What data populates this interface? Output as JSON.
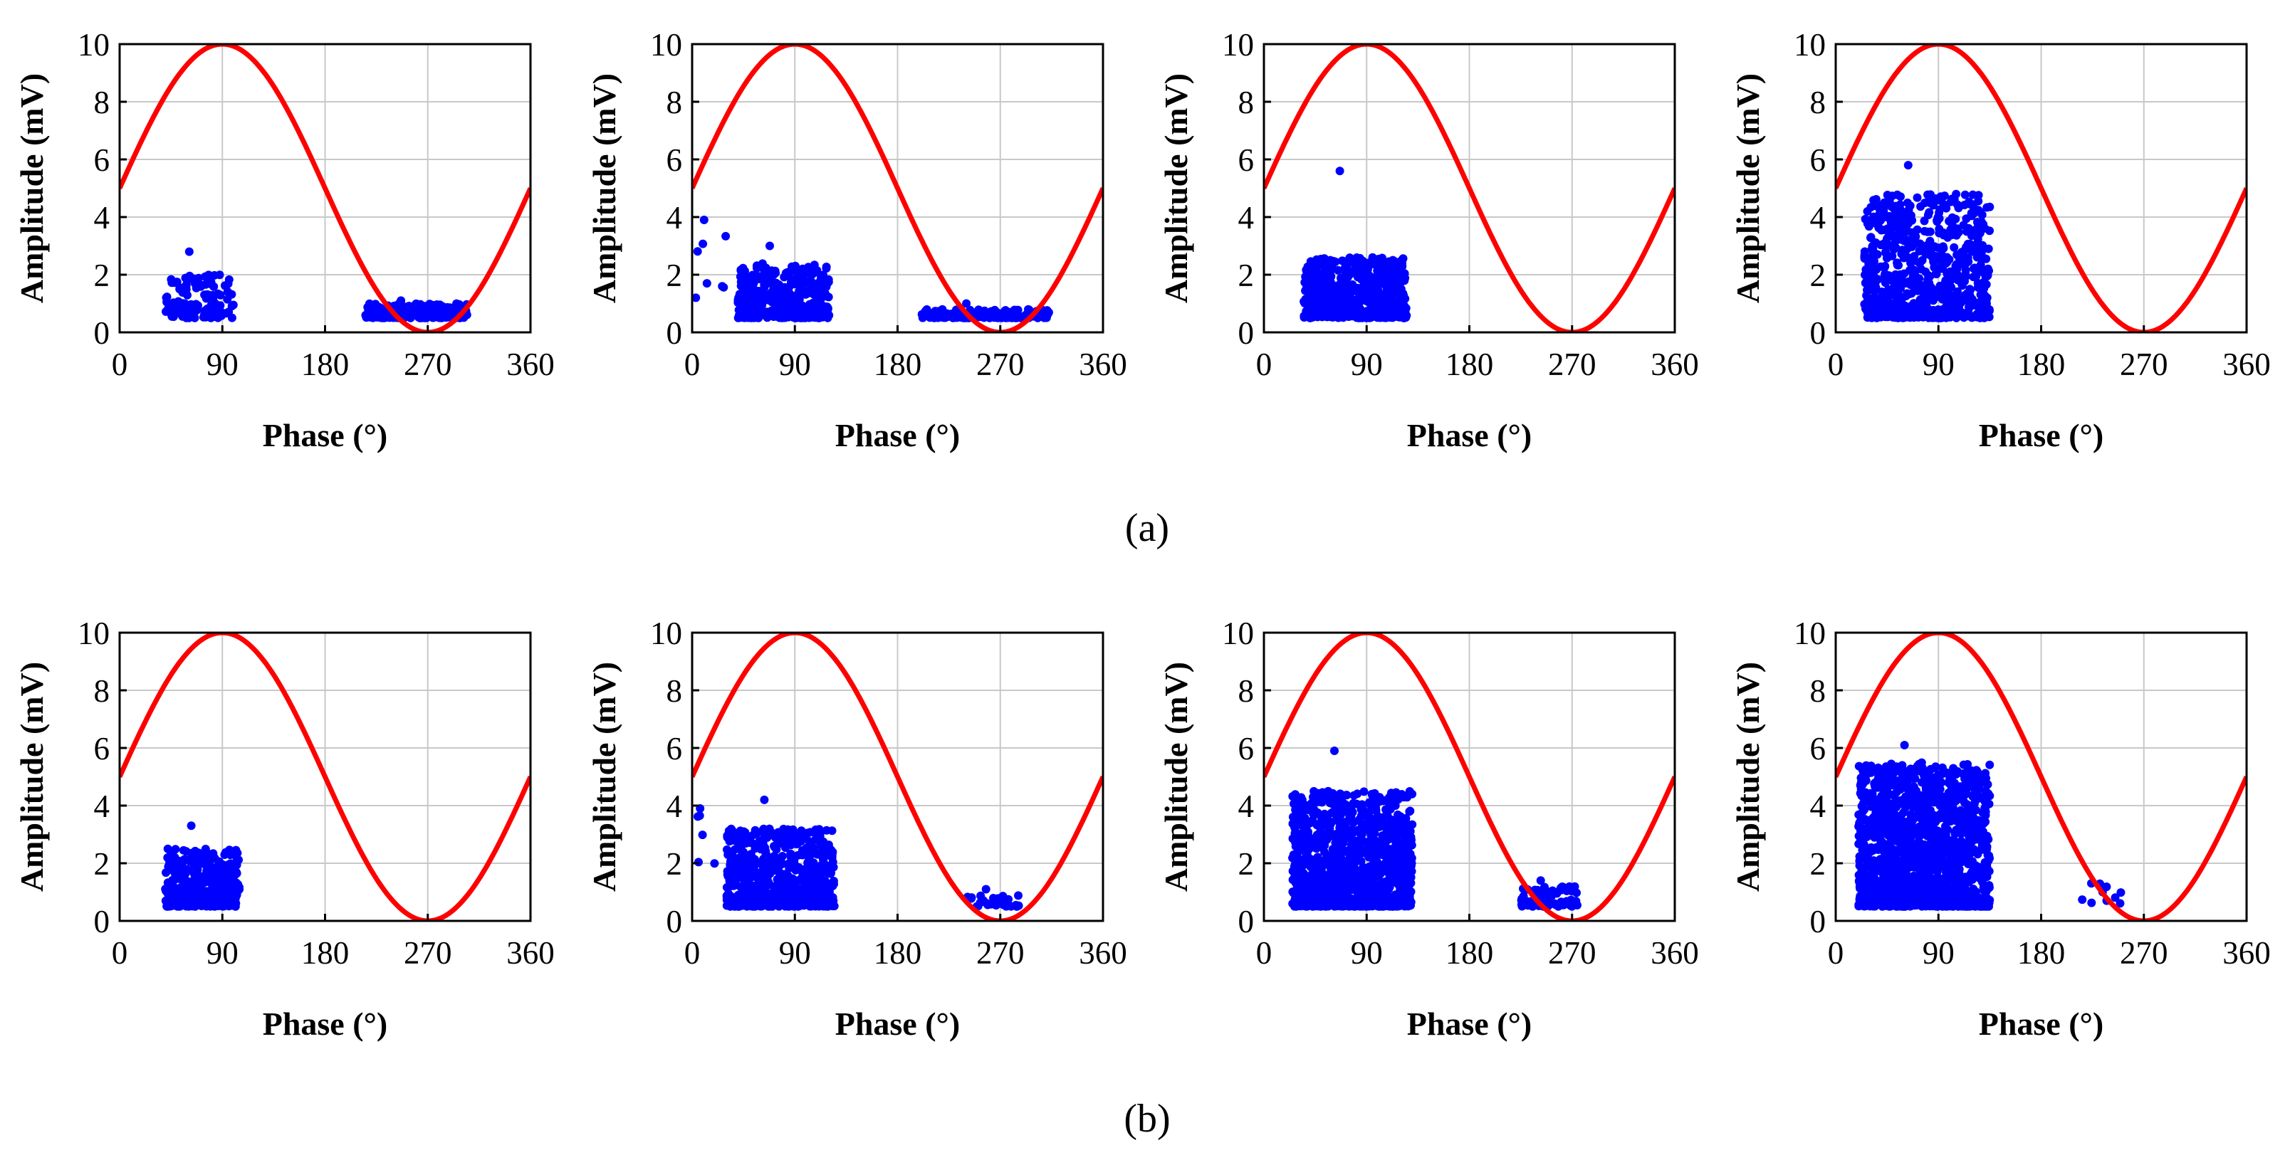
{
  "figure": {
    "row_captions": [
      "(a)",
      "(b)"
    ],
    "colors": {
      "sine": "#ff0000",
      "points": "#0000ff",
      "grid": "#c8c8c8",
      "axis": "#000000"
    }
  },
  "chart_data": [
    {
      "type": "scatter",
      "row": "a",
      "panel": 1,
      "xlabel": "Phase (°)",
      "ylabel": "Amplitude (mV)",
      "xlim": [
        0,
        360
      ],
      "ylim": [
        0,
        10
      ],
      "xticks": [
        0,
        90,
        180,
        270,
        360
      ],
      "yticks": [
        0,
        2,
        4,
        6,
        8,
        10
      ],
      "grid": true,
      "series": [
        {
          "name": "reference sine",
          "type": "line",
          "function": "5+5*sin(phase)"
        },
        {
          "name": "PD pulses",
          "type": "scatter",
          "clusters": [
            {
              "phase": [
                40,
                100
              ],
              "amp": [
                0.5,
                2.0
              ],
              "count": 120,
              "max": 2.8
            },
            {
              "phase": [
                215,
                305
              ],
              "amp": [
                0.5,
                1.0
              ],
              "count": 220,
              "max": 1.1
            }
          ]
        }
      ]
    },
    {
      "type": "scatter",
      "row": "a",
      "panel": 2,
      "xlabel": "Phase (°)",
      "ylabel": "Amplitude (mV)",
      "xlim": [
        0,
        360
      ],
      "ylim": [
        0,
        10
      ],
      "xticks": [
        0,
        90,
        180,
        270,
        360
      ],
      "yticks": [
        0,
        2,
        4,
        6,
        8,
        10
      ],
      "grid": true,
      "series": [
        {
          "name": "reference sine",
          "type": "line",
          "function": "5+5*sin(phase)"
        },
        {
          "name": "PD pulses",
          "type": "scatter",
          "clusters": [
            {
              "phase": [
                40,
                120
              ],
              "amp": [
                0.5,
                2.4
              ],
              "count": 420,
              "max": 3.0
            },
            {
              "phase": [
                0,
                30
              ],
              "amp": [
                1.2,
                3.9
              ],
              "count": 7,
              "max": 3.9
            },
            {
              "phase": [
                200,
                315
              ],
              "amp": [
                0.5,
                0.8
              ],
              "count": 150,
              "max": 1.0
            }
          ]
        }
      ]
    },
    {
      "type": "scatter",
      "row": "a",
      "panel": 3,
      "xlabel": "Phase (°)",
      "ylabel": "Amplitude (mV)",
      "xlim": [
        0,
        360
      ],
      "ylim": [
        0,
        10
      ],
      "xticks": [
        0,
        90,
        180,
        270,
        360
      ],
      "yticks": [
        0,
        2,
        4,
        6,
        8,
        10
      ],
      "grid": true,
      "series": [
        {
          "name": "reference sine",
          "type": "line",
          "function": "5+5*sin(phase)"
        },
        {
          "name": "PD pulses",
          "type": "scatter",
          "clusters": [
            {
              "phase": [
                35,
                125
              ],
              "amp": [
                0.5,
                2.6
              ],
              "count": 500,
              "max": 5.6
            }
          ]
        }
      ]
    },
    {
      "type": "scatter",
      "row": "a",
      "panel": 4,
      "xlabel": "Phase (°)",
      "ylabel": "Amplitude (mV)",
      "xlim": [
        0,
        360
      ],
      "ylim": [
        0,
        10
      ],
      "xticks": [
        0,
        90,
        180,
        270,
        360
      ],
      "yticks": [
        0,
        2,
        4,
        6,
        8,
        10
      ],
      "grid": true,
      "series": [
        {
          "name": "reference sine",
          "type": "line",
          "function": "5+5*sin(phase)"
        },
        {
          "name": "PD pulses",
          "type": "scatter",
          "clusters": [
            {
              "phase": [
                25,
                135
              ],
              "amp": [
                0.5,
                4.8
              ],
              "count": 700,
              "max": 5.8
            }
          ]
        }
      ]
    },
    {
      "type": "scatter",
      "row": "b",
      "panel": 1,
      "xlabel": "Phase (°)",
      "ylabel": "Amplitude (mV)",
      "xlim": [
        0,
        360
      ],
      "ylim": [
        0,
        10
      ],
      "xticks": [
        0,
        90,
        180,
        270,
        360
      ],
      "yticks": [
        0,
        2,
        4,
        6,
        8,
        10
      ],
      "grid": true,
      "series": [
        {
          "name": "reference sine",
          "type": "line",
          "function": "5+5*sin(phase)"
        },
        {
          "name": "PD pulses",
          "type": "scatter",
          "clusters": [
            {
              "phase": [
                40,
                105
              ],
              "amp": [
                0.5,
                2.5
              ],
              "count": 350,
              "max": 3.3
            }
          ]
        }
      ]
    },
    {
      "type": "scatter",
      "row": "b",
      "panel": 2,
      "xlabel": "Phase (°)",
      "ylabel": "Amplitude (mV)",
      "xlim": [
        0,
        360
      ],
      "ylim": [
        0,
        10
      ],
      "xticks": [
        0,
        90,
        180,
        270,
        360
      ],
      "yticks": [
        0,
        2,
        4,
        6,
        8,
        10
      ],
      "grid": true,
      "series": [
        {
          "name": "reference sine",
          "type": "line",
          "function": "5+5*sin(phase)"
        },
        {
          "name": "PD pulses",
          "type": "scatter",
          "clusters": [
            {
              "phase": [
                30,
                125
              ],
              "amp": [
                0.5,
                3.2
              ],
              "count": 700,
              "max": 4.2
            },
            {
              "phase": [
                0,
                20
              ],
              "amp": [
                1.5,
                3.9
              ],
              "count": 5,
              "max": 3.9
            },
            {
              "phase": [
                240,
                290
              ],
              "amp": [
                0.5,
                0.9
              ],
              "count": 30,
              "max": 1.1
            }
          ]
        }
      ]
    },
    {
      "type": "scatter",
      "row": "b",
      "panel": 3,
      "xlabel": "Phase (°)",
      "ylabel": "Amplitude (mV)",
      "xlim": [
        0,
        360
      ],
      "ylim": [
        0,
        10
      ],
      "xticks": [
        0,
        90,
        180,
        270,
        360
      ],
      "yticks": [
        0,
        2,
        4,
        6,
        8,
        10
      ],
      "grid": true,
      "series": [
        {
          "name": "reference sine",
          "type": "line",
          "function": "5+5*sin(phase)"
        },
        {
          "name": "PD pulses",
          "type": "scatter",
          "clusters": [
            {
              "phase": [
                25,
                130
              ],
              "amp": [
                0.5,
                4.5
              ],
              "count": 1100,
              "max": 5.9
            },
            {
              "phase": [
                225,
                275
              ],
              "amp": [
                0.5,
                1.2
              ],
              "count": 90,
              "max": 1.4
            }
          ]
        }
      ]
    },
    {
      "type": "scatter",
      "row": "b",
      "panel": 4,
      "xlabel": "Phase (°)",
      "ylabel": "Amplitude (mV)",
      "xlim": [
        0,
        360
      ],
      "ylim": [
        0,
        10
      ],
      "xticks": [
        0,
        90,
        180,
        270,
        360
      ],
      "yticks": [
        0,
        2,
        4,
        6,
        8,
        10
      ],
      "grid": true,
      "series": [
        {
          "name": "reference sine",
          "type": "line",
          "function": "5+5*sin(phase)"
        },
        {
          "name": "PD pulses",
          "type": "scatter",
          "clusters": [
            {
              "phase": [
                20,
                135
              ],
              "amp": [
                0.5,
                5.5
              ],
              "count": 1400,
              "max": 6.1
            },
            {
              "phase": [
                210,
                250
              ],
              "amp": [
                0.6,
                1.3
              ],
              "count": 10,
              "max": 1.3
            }
          ]
        }
      ]
    }
  ]
}
